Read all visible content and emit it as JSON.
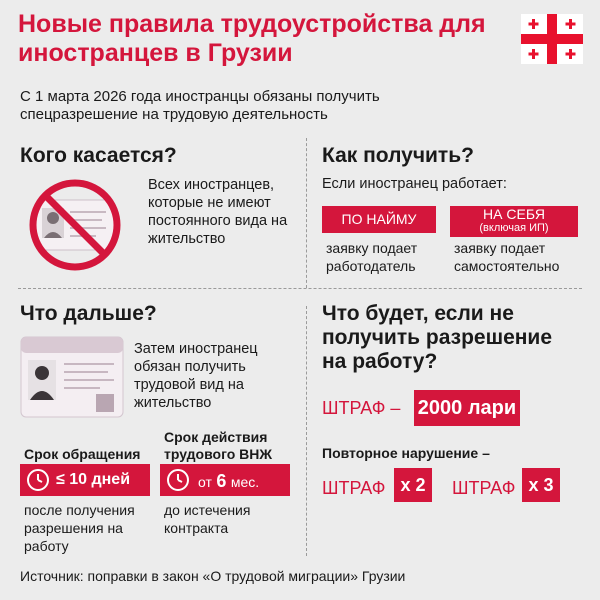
{
  "title": "Новые правила трудоустройства для иностранцев в Грузии",
  "intro": "С 1 марта 2026 года иностранцы обязаны получить спецразрешение на трудовую деятельность",
  "who": {
    "heading": "Кого касается?",
    "text": "Всех иностранцев, которые не имеют постоянного вида на жительство"
  },
  "how": {
    "heading": "Как получить?",
    "subheading": "Если иностранец работает:",
    "option1_label": "ПО НАЙМУ",
    "option1_desc": "заявку подает работодатель",
    "option2_label": "НА СЕБЯ",
    "option2_sub": "(включая ИП)",
    "option2_desc": "заявку подает самостоятельно"
  },
  "next": {
    "heading": "Что дальше?",
    "text": "Затем иностранец обязан получить трудовой вид на жительство",
    "term1_title": "Срок обращения",
    "term1_value": "≤ 10 дней",
    "term1_desc": "после получения разрешения на работу",
    "term2_title": "Срок действия трудового ВНЖ",
    "term2_prefix": "от",
    "term2_number": "6",
    "term2_unit": "мес.",
    "term2_desc": "до истечения контракта"
  },
  "penalty": {
    "heading": "Что будет, если не получить разрешение на работу?",
    "fine_label": "ШТРАФ –",
    "fine_amount": "2000 лари",
    "repeat_label": "Повторное нарушение –",
    "fine_short": "ШТРАФ",
    "mult2": "x 2",
    "mult3": "x 3"
  },
  "source": "Источник: поправки в закон «О трудовой миграции» Грузии",
  "colors": {
    "accent": "#d4163c",
    "background": "#ececec"
  }
}
